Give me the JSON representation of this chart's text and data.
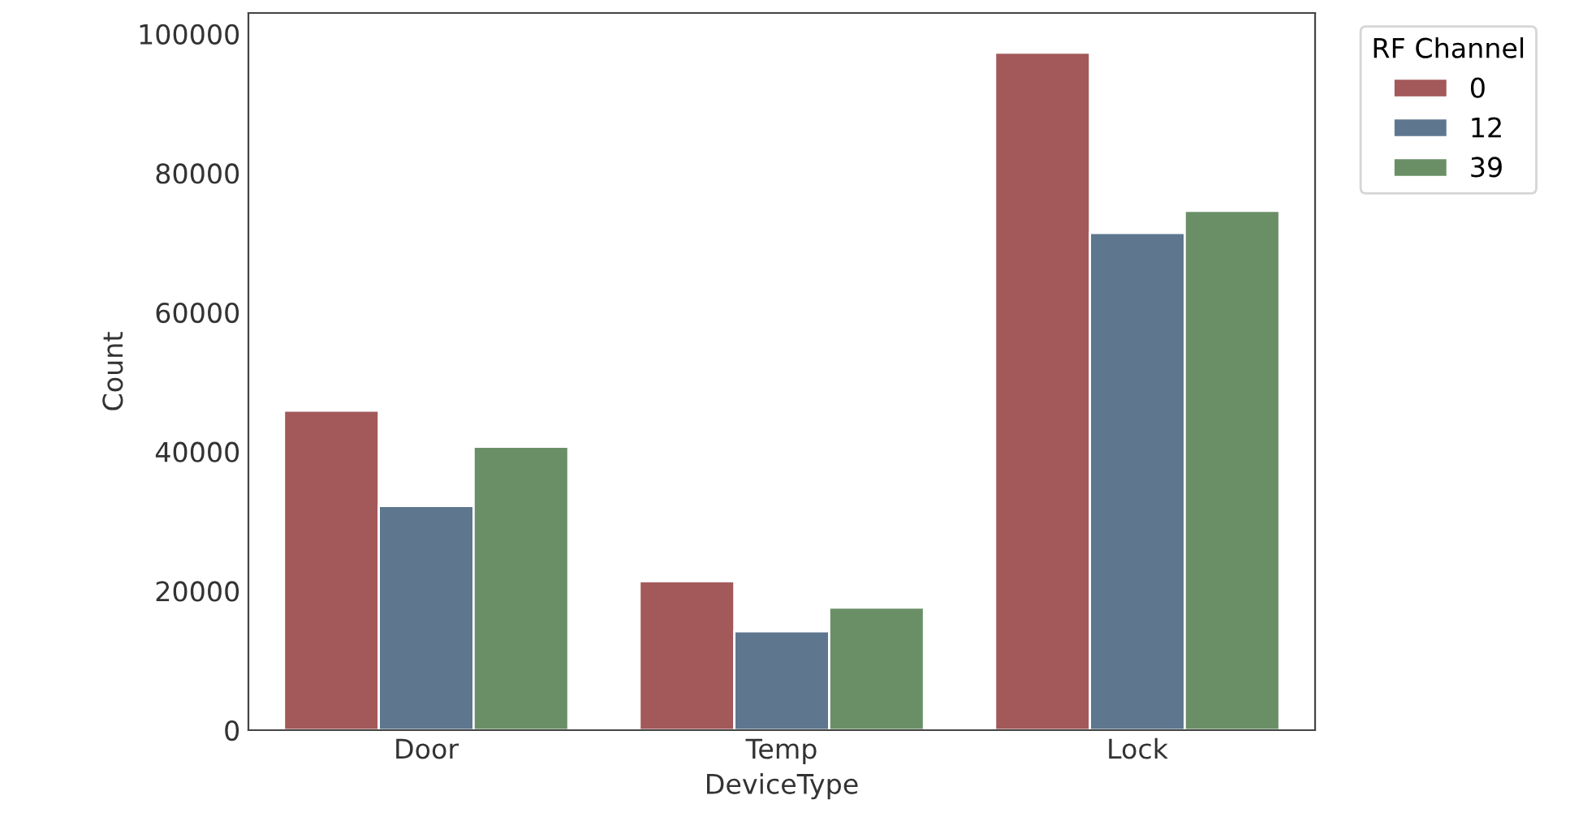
{
  "chart_data": {
    "type": "bar",
    "xlabel": "DeviceType",
    "ylabel": "Count",
    "legend_title": "RF Channel",
    "categories": [
      "Door",
      "Temp",
      "Lock"
    ],
    "series": [
      {
        "name": "0",
        "color": "#a3585a",
        "values": [
          45900,
          21400,
          97300
        ]
      },
      {
        "name": "12",
        "color": "#5e778f",
        "values": [
          32200,
          14200,
          71400
        ]
      },
      {
        "name": "39",
        "color": "#6a8f67",
        "values": [
          40700,
          17600,
          74600
        ]
      }
    ],
    "ylim": [
      0,
      103000
    ],
    "yticks": [
      0,
      20000,
      40000,
      60000,
      80000,
      100000
    ],
    "grid": false,
    "legend": "right"
  }
}
